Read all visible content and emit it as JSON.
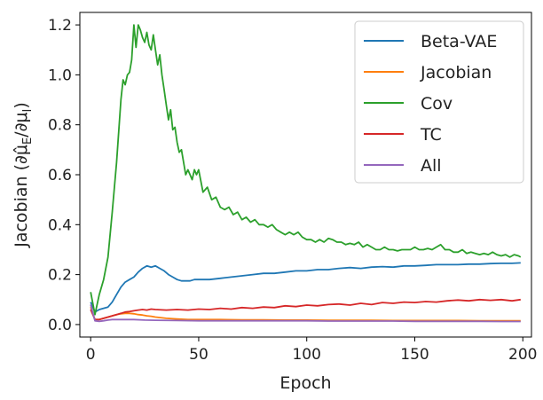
{
  "chart_data": {
    "type": "line",
    "xlabel": "Epoch",
    "ylabel": "Jacobian (∂μ̂_E/∂μ_I)",
    "xlim": [
      -5,
      204
    ],
    "ylim": [
      -0.05,
      1.25
    ],
    "xticks": [
      0,
      50,
      100,
      150,
      200
    ],
    "yticks": [
      0.0,
      0.2,
      0.4,
      0.6,
      0.8,
      1.0,
      1.2
    ],
    "legend_position": "top-right",
    "grid": false,
    "series": [
      {
        "name": "Beta-VAE",
        "color": "#1f77b4",
        "x": [
          0,
          2,
          4,
          6,
          8,
          10,
          12,
          14,
          16,
          18,
          20,
          22,
          24,
          26,
          28,
          30,
          32,
          34,
          36,
          38,
          40,
          42,
          44,
          46,
          48,
          50,
          55,
          60,
          65,
          70,
          75,
          80,
          85,
          90,
          95,
          100,
          105,
          110,
          115,
          120,
          125,
          130,
          135,
          140,
          145,
          150,
          155,
          160,
          165,
          170,
          175,
          180,
          185,
          190,
          195,
          199
        ],
        "y": [
          0.09,
          0.05,
          0.06,
          0.065,
          0.07,
          0.09,
          0.12,
          0.15,
          0.17,
          0.18,
          0.19,
          0.21,
          0.225,
          0.235,
          0.23,
          0.235,
          0.225,
          0.215,
          0.2,
          0.19,
          0.18,
          0.175,
          0.175,
          0.175,
          0.18,
          0.18,
          0.18,
          0.185,
          0.19,
          0.195,
          0.2,
          0.205,
          0.205,
          0.21,
          0.215,
          0.215,
          0.22,
          0.22,
          0.225,
          0.228,
          0.225,
          0.23,
          0.232,
          0.23,
          0.235,
          0.235,
          0.237,
          0.24,
          0.24,
          0.24,
          0.242,
          0.242,
          0.244,
          0.245,
          0.245,
          0.247
        ]
      },
      {
        "name": "Jacobian",
        "color": "#ff7f0e",
        "x": [
          0,
          2,
          4,
          6,
          8,
          10,
          12,
          14,
          16,
          18,
          20,
          22,
          24,
          26,
          28,
          30,
          35,
          40,
          45,
          50,
          60,
          70,
          80,
          90,
          100,
          110,
          120,
          130,
          140,
          150,
          160,
          170,
          180,
          190,
          199
        ],
        "y": [
          0.07,
          0.02,
          0.02,
          0.025,
          0.03,
          0.035,
          0.04,
          0.043,
          0.045,
          0.045,
          0.043,
          0.04,
          0.038,
          0.035,
          0.033,
          0.03,
          0.025,
          0.022,
          0.02,
          0.02,
          0.02,
          0.019,
          0.019,
          0.018,
          0.018,
          0.017,
          0.017,
          0.017,
          0.016,
          0.016,
          0.016,
          0.016,
          0.015,
          0.015,
          0.015
        ]
      },
      {
        "name": "Cov",
        "color": "#2ca02c",
        "x": [
          0,
          2,
          4,
          6,
          8,
          10,
          12,
          14,
          15,
          16,
          17,
          18,
          19,
          20,
          21,
          22,
          23,
          24,
          25,
          26,
          27,
          28,
          29,
          30,
          31,
          32,
          33,
          34,
          35,
          36,
          37,
          38,
          39,
          40,
          41,
          42,
          43,
          44,
          45,
          46,
          47,
          48,
          49,
          50,
          52,
          54,
          56,
          58,
          60,
          62,
          64,
          66,
          68,
          70,
          72,
          74,
          76,
          78,
          80,
          82,
          84,
          86,
          88,
          90,
          92,
          94,
          96,
          98,
          100,
          102,
          104,
          106,
          108,
          110,
          112,
          114,
          116,
          118,
          120,
          122,
          124,
          126,
          128,
          130,
          132,
          134,
          136,
          138,
          140,
          142,
          144,
          146,
          148,
          150,
          152,
          154,
          156,
          158,
          160,
          162,
          164,
          166,
          168,
          170,
          172,
          174,
          176,
          178,
          180,
          182,
          184,
          186,
          188,
          190,
          192,
          194,
          196,
          198,
          199
        ],
        "y": [
          0.13,
          0.04,
          0.12,
          0.18,
          0.27,
          0.45,
          0.65,
          0.9,
          0.98,
          0.96,
          1.0,
          1.01,
          1.06,
          1.2,
          1.11,
          1.2,
          1.18,
          1.15,
          1.13,
          1.17,
          1.12,
          1.1,
          1.16,
          1.1,
          1.04,
          1.08,
          1.0,
          0.94,
          0.88,
          0.82,
          0.86,
          0.78,
          0.79,
          0.73,
          0.69,
          0.7,
          0.65,
          0.6,
          0.62,
          0.6,
          0.58,
          0.62,
          0.6,
          0.62,
          0.53,
          0.55,
          0.5,
          0.51,
          0.47,
          0.46,
          0.47,
          0.44,
          0.45,
          0.42,
          0.43,
          0.41,
          0.42,
          0.4,
          0.4,
          0.39,
          0.4,
          0.38,
          0.37,
          0.36,
          0.37,
          0.36,
          0.37,
          0.35,
          0.34,
          0.34,
          0.33,
          0.34,
          0.33,
          0.345,
          0.34,
          0.33,
          0.33,
          0.32,
          0.325,
          0.32,
          0.33,
          0.31,
          0.32,
          0.31,
          0.3,
          0.3,
          0.31,
          0.3,
          0.3,
          0.295,
          0.3,
          0.3,
          0.3,
          0.31,
          0.3,
          0.3,
          0.305,
          0.3,
          0.31,
          0.32,
          0.3,
          0.3,
          0.29,
          0.29,
          0.3,
          0.285,
          0.29,
          0.285,
          0.28,
          0.285,
          0.28,
          0.29,
          0.28,
          0.275,
          0.28,
          0.27,
          0.28,
          0.275,
          0.27
        ]
      },
      {
        "name": "TC",
        "color": "#d62728",
        "x": [
          0,
          2,
          4,
          6,
          8,
          10,
          12,
          14,
          16,
          18,
          20,
          22,
          24,
          26,
          28,
          30,
          35,
          40,
          45,
          50,
          55,
          60,
          65,
          70,
          75,
          80,
          85,
          90,
          95,
          100,
          105,
          110,
          115,
          120,
          125,
          130,
          135,
          140,
          145,
          150,
          155,
          160,
          165,
          170,
          175,
          180,
          185,
          190,
          195,
          199
        ],
        "y": [
          0.06,
          0.02,
          0.02,
          0.025,
          0.03,
          0.035,
          0.04,
          0.045,
          0.05,
          0.052,
          0.055,
          0.058,
          0.06,
          0.058,
          0.062,
          0.06,
          0.058,
          0.06,
          0.058,
          0.062,
          0.06,
          0.065,
          0.062,
          0.068,
          0.065,
          0.07,
          0.068,
          0.075,
          0.072,
          0.078,
          0.075,
          0.08,
          0.082,
          0.078,
          0.085,
          0.08,
          0.088,
          0.085,
          0.09,
          0.088,
          0.092,
          0.09,
          0.095,
          0.098,
          0.095,
          0.1,
          0.097,
          0.1,
          0.095,
          0.1
        ]
      },
      {
        "name": "All",
        "color": "#9467bd",
        "x": [
          0,
          2,
          4,
          6,
          8,
          10,
          12,
          14,
          16,
          18,
          20,
          25,
          30,
          40,
          50,
          60,
          70,
          80,
          90,
          100,
          110,
          120,
          130,
          140,
          150,
          160,
          170,
          180,
          190,
          199
        ],
        "y": [
          0.08,
          0.015,
          0.013,
          0.015,
          0.018,
          0.02,
          0.02,
          0.02,
          0.02,
          0.02,
          0.02,
          0.018,
          0.017,
          0.016,
          0.015,
          0.015,
          0.015,
          0.015,
          0.015,
          0.015,
          0.014,
          0.014,
          0.014,
          0.014,
          0.013,
          0.013,
          0.013,
          0.013,
          0.012,
          0.012
        ]
      }
    ]
  }
}
